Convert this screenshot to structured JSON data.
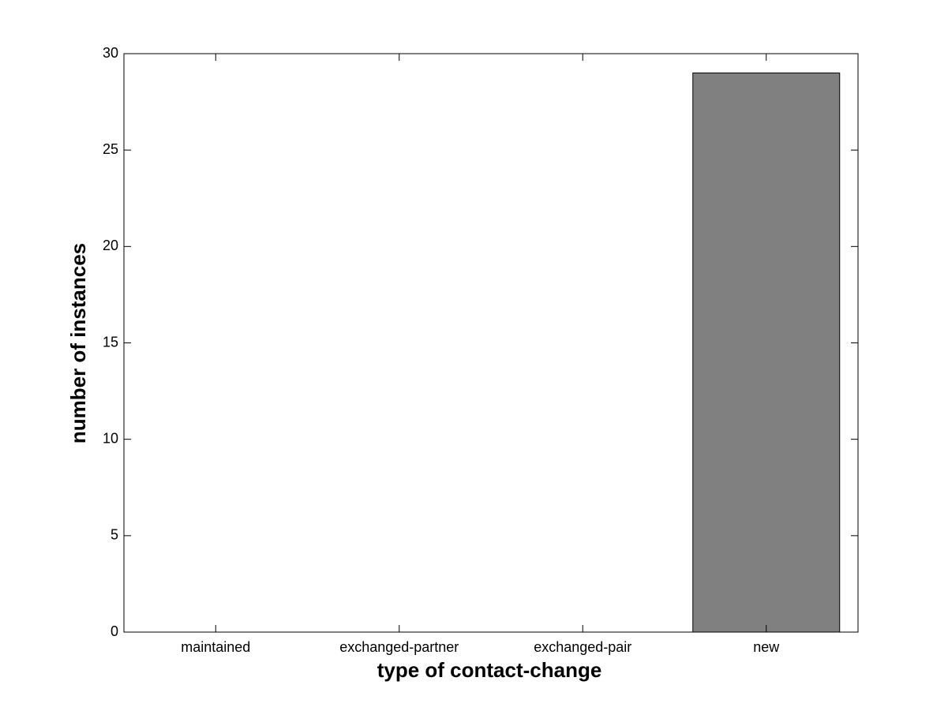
{
  "chart_data": {
    "type": "bar",
    "categories": [
      "maintained",
      "exchanged-partner",
      "exchanged-pair",
      "new"
    ],
    "values": [
      0,
      0,
      0,
      29
    ],
    "color": "#808080",
    "x_label": "type of contact-change",
    "y_label": "number of instances",
    "ylim": [
      0,
      30
    ],
    "yticks": [
      0,
      5,
      10,
      15,
      20,
      25,
      30
    ],
    "grid": false
  }
}
